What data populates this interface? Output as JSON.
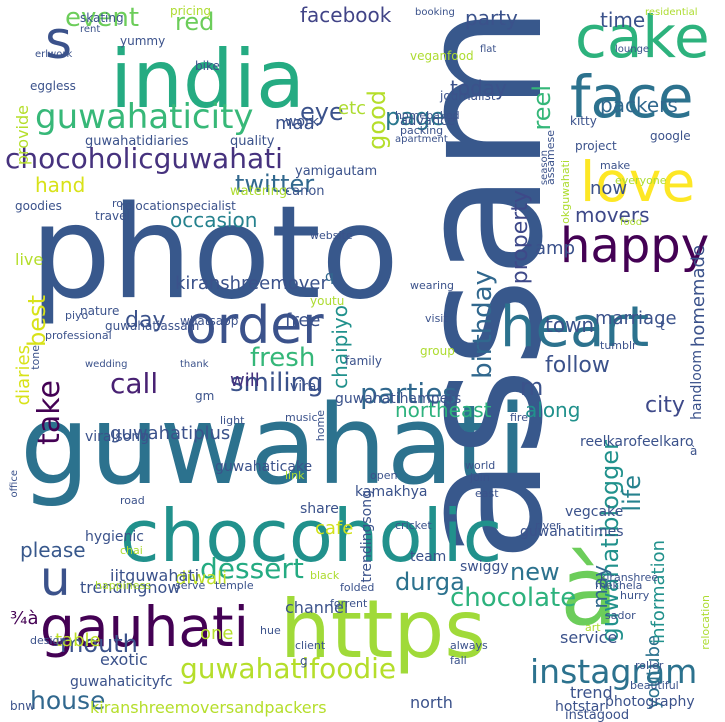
{
  "words": [
    {
      "t": "guwahati",
      "c": "#2c728e"
    },
    {
      "t": "photo",
      "c": "#38588c"
    },
    {
      "t": "assam",
      "c": "#38588c"
    },
    {
      "t": "india",
      "c": "#25ab82"
    },
    {
      "t": "https",
      "c": "#a0da39"
    },
    {
      "t": "chocoholic",
      "c": "#21918c"
    },
    {
      "t": "cake",
      "c": "#2db27d"
    },
    {
      "t": "face",
      "c": "#2c728e"
    },
    {
      "t": "heart",
      "c": "#2c728e"
    },
    {
      "t": "order",
      "c": "#3b528b"
    },
    {
      "t": "love",
      "c": "#fde725"
    },
    {
      "t": "happy",
      "c": "#440154"
    },
    {
      "t": "gauhati",
      "c": "#440154"
    },
    {
      "t": "à",
      "c": "#6ccd5a"
    },
    {
      "t": "s",
      "c": "#3b528b"
    },
    {
      "t": "u",
      "c": "#3b528b"
    },
    {
      "t": "guwahaticity",
      "c": "#37b878"
    },
    {
      "t": "chocoholicguwahati",
      "c": "#46327e"
    },
    {
      "t": "instagram",
      "c": "#2c728e"
    },
    {
      "t": "guwahatifoodie",
      "c": "#b5de2b"
    },
    {
      "t": "dessert",
      "c": "#25ab82"
    },
    {
      "t": "chocolate",
      "c": "#2db27d"
    },
    {
      "t": "parties",
      "c": "#31688e"
    },
    {
      "t": "smiling",
      "c": "#3b528b"
    },
    {
      "t": "call",
      "c": "#482173"
    },
    {
      "t": "take",
      "c": "#440154"
    },
    {
      "t": "fresh",
      "c": "#35b779"
    },
    {
      "t": "twitter",
      "c": "#31688e"
    },
    {
      "t": "guwahatiblogger",
      "c": "#21918c"
    },
    {
      "t": "birthday",
      "c": "#31688e"
    },
    {
      "t": "life",
      "c": "#26828e"
    },
    {
      "t": "new",
      "c": "#2c728e"
    },
    {
      "t": "house",
      "c": "#31688e"
    },
    {
      "t": "durga",
      "c": "#2c728e"
    },
    {
      "t": "mouth",
      "c": "#3b528b"
    },
    {
      "t": "facebook",
      "c": "#414487"
    },
    {
      "t": "event",
      "c": "#6ccd5a"
    },
    {
      "t": "page",
      "c": "#2a788e"
    },
    {
      "t": "red",
      "c": "#6ccd5a"
    },
    {
      "t": "good",
      "c": "#b5de2b"
    },
    {
      "t": "reel",
      "c": "#35b779"
    },
    {
      "t": "eye",
      "c": "#3b528b"
    },
    {
      "t": "etc",
      "c": "#addc30"
    },
    {
      "t": "day",
      "c": "#3b528b"
    },
    {
      "t": "best",
      "c": "#d8e219"
    },
    {
      "t": "hand",
      "c": "#d8e219"
    },
    {
      "t": "occasion",
      "c": "#26828e"
    },
    {
      "t": "chaipiyo",
      "c": "#21918c"
    },
    {
      "t": "property",
      "c": "#3e4989"
    },
    {
      "t": "follow",
      "c": "#3b528b"
    },
    {
      "t": "northeast",
      "c": "#2db27d"
    },
    {
      "t": "city",
      "c": "#3e4989"
    },
    {
      "t": "along",
      "c": "#21918c"
    },
    {
      "t": "youtube",
      "c": "#2c728e"
    },
    {
      "t": "may",
      "c": "#31688e"
    },
    {
      "t": "information",
      "c": "#21918c"
    },
    {
      "t": "please",
      "c": "#38588c"
    },
    {
      "t": "diwali",
      "c": "#bddf26"
    },
    {
      "t": "cafe",
      "c": "#d2e21b"
    },
    {
      "t": "will",
      "c": "#46327e"
    },
    {
      "t": "free",
      "c": "#3b528b"
    },
    {
      "t": "guwahatiplus",
      "c": "#3b528b"
    },
    {
      "t": "kiranshreemover",
      "c": "#3b528b"
    },
    {
      "t": "town",
      "c": "#3b528b"
    },
    {
      "t": "marriage",
      "c": "#3b528b"
    },
    {
      "t": "movers",
      "c": "#3e4989"
    },
    {
      "t": "amp",
      "c": "#3b528b"
    },
    {
      "t": "now",
      "c": "#3b528b"
    },
    {
      "t": "today",
      "c": "#3b528b"
    },
    {
      "t": "party",
      "c": "#3b528b"
    },
    {
      "t": "time",
      "c": "#3b528b"
    },
    {
      "t": "packers",
      "c": "#31688e"
    },
    {
      "t": "homemade",
      "c": "#3b528b"
    },
    {
      "t": "one",
      "c": "#b5de2b"
    },
    {
      "t": "table",
      "c": "#bddf26"
    },
    {
      "t": "maa",
      "c": "#3b528b"
    },
    {
      "t": "channel",
      "c": "#3b528b"
    },
    {
      "t": "trendingnow",
      "c": "#3b528b"
    },
    {
      "t": "iitguwahati",
      "c": "#3b528b"
    },
    {
      "t": "exotic",
      "c": "#3b528b"
    },
    {
      "t": "service",
      "c": "#3b528b"
    },
    {
      "t": "north",
      "c": "#3b528b"
    },
    {
      "t": "trend",
      "c": "#3b528b"
    },
    {
      "t": "provide",
      "c": "#b5de2b"
    },
    {
      "t": "live",
      "c": "#b5de2b"
    },
    {
      "t": "diaries",
      "c": "#d8e219"
    },
    {
      "t": "¾à",
      "c": "#440154"
    },
    {
      "t": "guwahaticityfc",
      "c": "#3b528b"
    },
    {
      "t": "kiranshreemoversandpackers",
      "c": "#b5de2b"
    },
    {
      "t": "photography",
      "c": "#3b528b"
    },
    {
      "t": "hotstar",
      "c": "#3b528b"
    },
    {
      "t": "bnw",
      "c": "#3b528b"
    },
    {
      "t": "instagood",
      "c": "#3b528b"
    },
    {
      "t": "hygienic",
      "c": "#3b528b"
    },
    {
      "t": "kamakhya",
      "c": "#3b528b"
    },
    {
      "t": "viral",
      "c": "#3b528b"
    },
    {
      "t": "share",
      "c": "#3b528b"
    },
    {
      "t": "team",
      "c": "#3b528b"
    },
    {
      "t": "swiggy",
      "c": "#3b528b"
    },
    {
      "t": "trendingsong",
      "c": "#3b528b"
    },
    {
      "t": "vegcake",
      "c": "#3b528b"
    },
    {
      "t": "guwahatitimes",
      "c": "#3b528b"
    },
    {
      "t": "reelkarofeelkaro",
      "c": "#3b528b"
    },
    {
      "t": "handloom",
      "c": "#3b528b"
    },
    {
      "t": "guwahatihampers",
      "c": "#3b528b"
    },
    {
      "t": "guwahaticake",
      "c": "#3b528b"
    },
    {
      "t": "viralsong",
      "c": "#3b528b"
    },
    {
      "t": "family",
      "c": "#3b528b"
    },
    {
      "t": "work",
      "c": "#3b528b"
    },
    {
      "t": "advance",
      "c": "#3b528b"
    },
    {
      "t": "guwahatidiaries",
      "c": "#3b528b"
    },
    {
      "t": "quality",
      "c": "#3b528b"
    },
    {
      "t": "yamigautam",
      "c": "#3b528b"
    },
    {
      "t": "canon",
      "c": "#3b528b"
    },
    {
      "t": "relocationspecialist",
      "c": "#3b528b"
    },
    {
      "t": "watering",
      "c": "#addc30"
    },
    {
      "t": "travel",
      "c": "#3b528b"
    },
    {
      "t": "goodies",
      "c": "#3b528b"
    },
    {
      "t": "eggless",
      "c": "#3b528b"
    },
    {
      "t": "skating",
      "c": "#3b528b"
    },
    {
      "t": "yummy",
      "c": "#3b528b"
    },
    {
      "t": "pricing",
      "c": "#addc30"
    },
    {
      "t": "bike",
      "c": "#3b528b"
    },
    {
      "t": "veganfood",
      "c": "#addc30"
    },
    {
      "t": "rent",
      "c": "#3b528b"
    },
    {
      "t": "booking",
      "c": "#3b528b"
    },
    {
      "t": "journalist",
      "c": "#3b528b"
    },
    {
      "t": "homebaked",
      "c": "#3b528b"
    },
    {
      "t": "kitty",
      "c": "#3b528b"
    },
    {
      "t": "google",
      "c": "#3b528b"
    },
    {
      "t": "project",
      "c": "#3b528b"
    },
    {
      "t": "packing",
      "c": "#3b528b"
    },
    {
      "t": "apartment",
      "c": "#3b528b"
    },
    {
      "t": "flat",
      "c": "#3b528b"
    },
    {
      "t": "lounge",
      "c": "#3b528b"
    },
    {
      "t": "residential",
      "c": "#addc30"
    },
    {
      "t": "make",
      "c": "#3b528b"
    },
    {
      "t": "everyone",
      "c": "#addc30"
    },
    {
      "t": "food",
      "c": "#addc30"
    },
    {
      "t": "website",
      "c": "#3b528b"
    },
    {
      "t": "nature",
      "c": "#3b528b"
    },
    {
      "t": "whatsapp",
      "c": "#3b528b"
    },
    {
      "t": "professional",
      "c": "#3b528b"
    },
    {
      "t": "tone",
      "c": "#3b528b"
    },
    {
      "t": "piyo",
      "c": "#3b528b"
    },
    {
      "t": "wedding",
      "c": "#3b528b"
    },
    {
      "t": "thank",
      "c": "#3b528b"
    },
    {
      "t": "music",
      "c": "#3b528b"
    },
    {
      "t": "fire",
      "c": "#3b528b"
    },
    {
      "t": "tumblr",
      "c": "#3b528b"
    },
    {
      "t": "group",
      "c": "#addc30"
    },
    {
      "t": "visit",
      "c": "#3b528b"
    },
    {
      "t": "wearing",
      "c": "#3b528b"
    },
    {
      "t": "office",
      "c": "#3b528b"
    },
    {
      "t": "light",
      "c": "#3b528b"
    },
    {
      "t": "link",
      "c": "#addc30"
    },
    {
      "t": "open",
      "c": "#3b528b"
    },
    {
      "t": "join",
      "c": "#3b528b"
    },
    {
      "t": "world",
      "c": "#3b528b"
    },
    {
      "t": "east",
      "c": "#3b528b"
    },
    {
      "t": "road",
      "c": "#3b528b"
    },
    {
      "t": "cricket",
      "c": "#3b528b"
    },
    {
      "t": "river",
      "c": "#3b528b"
    },
    {
      "t": "chai",
      "c": "#addc30"
    },
    {
      "t": "happiness",
      "c": "#addc30"
    },
    {
      "t": "serve",
      "c": "#3b528b"
    },
    {
      "t": "temple",
      "c": "#3b528b"
    },
    {
      "t": "mekhela",
      "c": "#3b528b"
    },
    {
      "t": "kiranshree",
      "c": "#3b528b"
    },
    {
      "t": "sador",
      "c": "#3b528b"
    },
    {
      "t": "hurry",
      "c": "#3b528b"
    },
    {
      "t": "black",
      "c": "#addc30"
    },
    {
      "t": "folded",
      "c": "#3b528b"
    },
    {
      "t": "forrent",
      "c": "#3b528b"
    },
    {
      "t": "hue",
      "c": "#3b528b"
    },
    {
      "t": "client",
      "c": "#3b528b"
    },
    {
      "t": "always",
      "c": "#3b528b"
    },
    {
      "t": "fall",
      "c": "#3b528b"
    },
    {
      "t": "art",
      "c": "#addc30"
    },
    {
      "t": "roller",
      "c": "#3b528b"
    },
    {
      "t": "beautiful",
      "c": "#3b528b"
    },
    {
      "t": "design",
      "c": "#3b528b"
    },
    {
      "t": "relocation",
      "c": "#addc30"
    },
    {
      "t": "assamese",
      "c": "#3b528b"
    },
    {
      "t": "season",
      "c": "#3b528b"
    },
    {
      "t": "youtu",
      "c": "#addc30"
    },
    {
      "t": "erlwork",
      "c": "#3b528b"
    },
    {
      "t": "home",
      "c": "#3b528b"
    },
    {
      "t": "okguwahati",
      "c": "#addc30"
    },
    {
      "t": "guwahatiassam",
      "c": "#3b528b"
    },
    {
      "t": "gm",
      "c": "#3b528b"
    },
    {
      "t": "g",
      "c": "#3b528b"
    },
    {
      "t": "t",
      "c": "#3b528b"
    },
    {
      "t": "m",
      "c": "#3b528b"
    },
    {
      "t": "q",
      "c": "#31688e"
    },
    {
      "t": "à",
      "c": "#3b528b"
    },
    {
      "t": "ro",
      "c": "#3b528b"
    }
  ]
}
